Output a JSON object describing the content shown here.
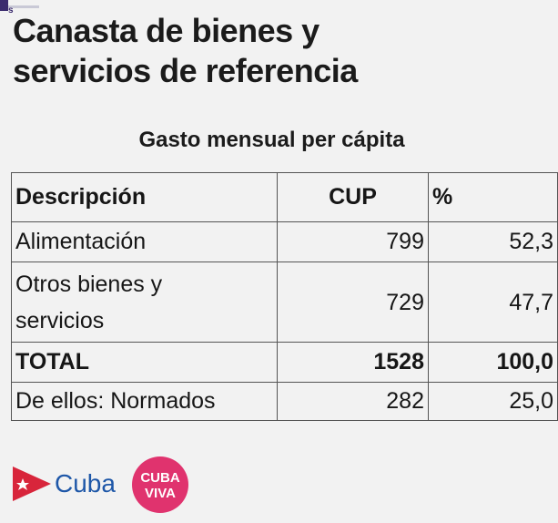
{
  "title": {
    "line1": "Canasta de bienes y",
    "line2": "servicios de referencia"
  },
  "subtitle": "Gasto mensual per cápita",
  "table": {
    "headers": [
      "Descripción",
      "CUP",
      "%"
    ],
    "rows": [
      {
        "description": "Alimentación",
        "cup": "799",
        "pct": "52,3"
      },
      {
        "description_line1": "Otros bienes y",
        "description_line2": "servicios",
        "cup": "729",
        "pct": "47,7"
      },
      {
        "description": "TOTAL",
        "cup": "1528",
        "pct": "100,0"
      },
      {
        "description": "De ellos: Normados",
        "cup": "282",
        "pct": "25,0"
      }
    ]
  },
  "logos": {
    "cuba_label": "Cuba",
    "cuba_viva_top": "CUBA",
    "cuba_viva_bottom": "VIVA",
    "icons": [
      "cuba-flag-triangle-icon",
      "cuba-viva-logo"
    ]
  },
  "colors": {
    "background": "#f2f2f2",
    "logo_blue": "#1e57a8",
    "logo_red": "#d8253b",
    "viva_pink": "#e0336e"
  }
}
